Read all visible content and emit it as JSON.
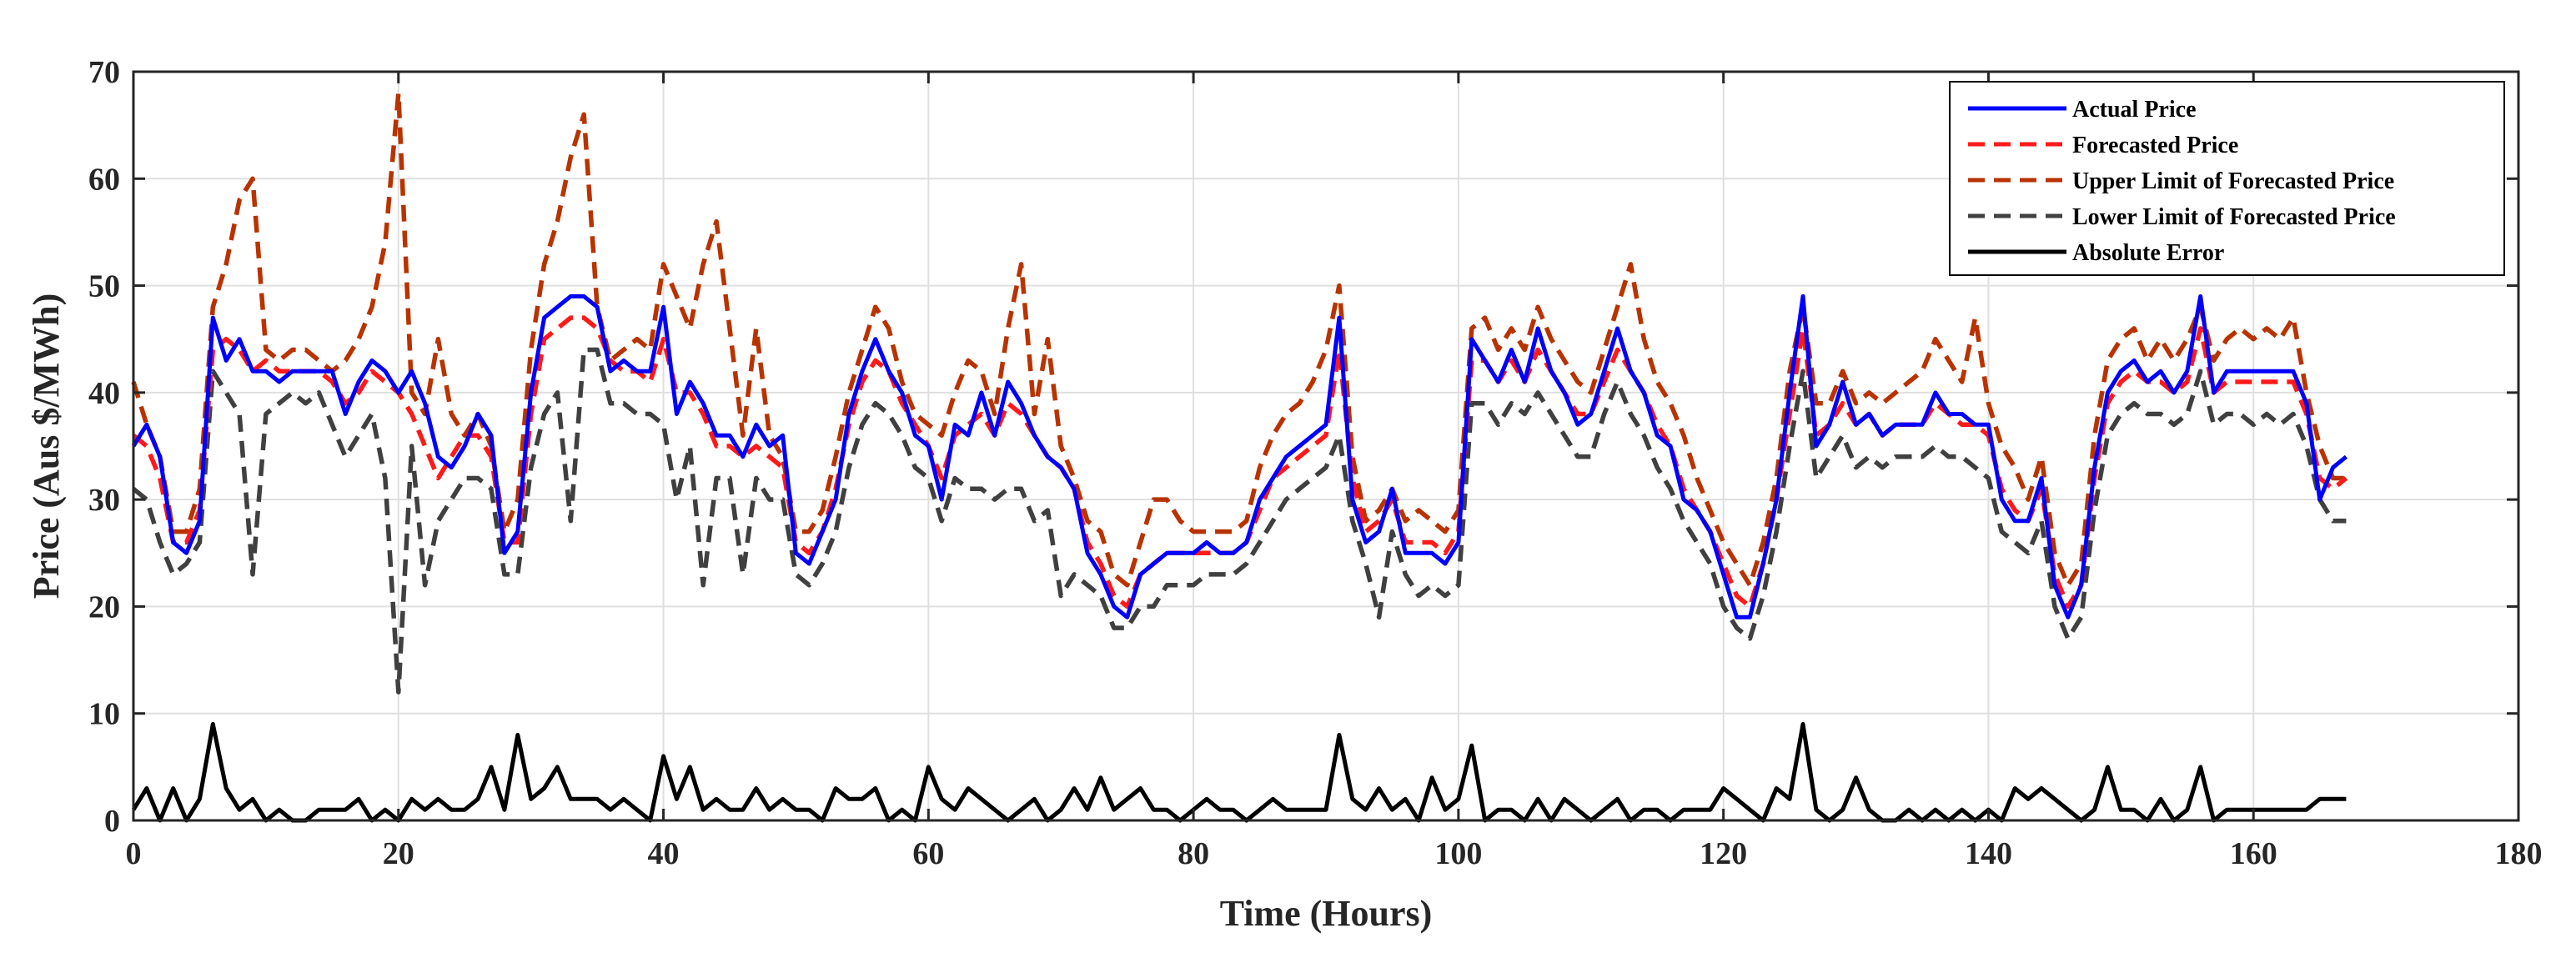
{
  "chart_data": {
    "type": "line",
    "title": "",
    "xlabel": "Time (Hours)",
    "ylabel": "Price (Aus $/MWh)",
    "xlim": [
      0,
      180
    ],
    "ylim": [
      0,
      70
    ],
    "xticks": [
      0,
      20,
      40,
      60,
      80,
      100,
      120,
      140,
      160,
      180
    ],
    "yticks": [
      0,
      10,
      20,
      30,
      40,
      50,
      60,
      70
    ],
    "grid": true,
    "legend_position": "top-right",
    "x": [
      0,
      1,
      2,
      3,
      4,
      5,
      6,
      7,
      8,
      9,
      10,
      11,
      12,
      13,
      14,
      15,
      16,
      17,
      18,
      19,
      20,
      21,
      22,
      23,
      24,
      25,
      26,
      27,
      28,
      29,
      30,
      31,
      32,
      33,
      34,
      35,
      36,
      37,
      38,
      39,
      40,
      41,
      42,
      43,
      44,
      45,
      46,
      47,
      48,
      49,
      50,
      51,
      52,
      53,
      54,
      55,
      56,
      57,
      58,
      59,
      60,
      61,
      62,
      63,
      64,
      65,
      66,
      67,
      68,
      69,
      70,
      71,
      72,
      73,
      74,
      75,
      76,
      77,
      78,
      79,
      80,
      81,
      82,
      83,
      84,
      85,
      86,
      87,
      88,
      89,
      90,
      91,
      92,
      93,
      94,
      95,
      96,
      97,
      98,
      99,
      100,
      101,
      102,
      103,
      104,
      105,
      106,
      107,
      108,
      109,
      110,
      111,
      112,
      113,
      114,
      115,
      116,
      117,
      118,
      119,
      120,
      121,
      122,
      123,
      124,
      125,
      126,
      127,
      128,
      129,
      130,
      131,
      132,
      133,
      134,
      135,
      136,
      137,
      138,
      139,
      140,
      141,
      142,
      143,
      144,
      145,
      146,
      147,
      148,
      149,
      150,
      151,
      152,
      153,
      154,
      155,
      156,
      157,
      158,
      159,
      160,
      161,
      162,
      163,
      164,
      165,
      166,
      167
    ],
    "series": [
      {
        "name": "Actual Price",
        "color": "#0000ff",
        "style": "solid",
        "values": [
          35,
          37,
          34,
          26,
          25,
          28,
          47,
          43,
          45,
          42,
          42,
          41,
          42,
          42,
          42,
          42,
          38,
          41,
          43,
          42,
          40,
          42,
          39,
          34,
          33,
          35,
          38,
          36,
          25,
          27,
          40,
          47,
          48,
          49,
          49,
          48,
          42,
          43,
          42,
          42,
          48,
          38,
          41,
          39,
          36,
          36,
          34,
          37,
          35,
          36,
          25,
          24,
          27,
          30,
          38,
          42,
          45,
          42,
          40,
          36,
          35,
          30,
          37,
          36,
          40,
          36,
          41,
          39,
          36,
          34,
          33,
          31,
          25,
          23,
          20,
          19,
          23,
          24,
          25,
          25,
          25,
          26,
          25,
          25,
          26,
          30,
          32,
          34,
          35,
          36,
          37,
          47,
          30,
          26,
          27,
          31,
          25,
          25,
          25,
          24,
          26,
          45,
          43,
          41,
          44,
          41,
          46,
          42,
          40,
          37,
          38,
          42,
          46,
          42,
          40,
          36,
          35,
          30,
          29,
          27,
          23,
          19,
          19,
          24,
          30,
          40,
          49,
          35,
          37,
          41,
          37,
          38,
          36,
          37,
          37,
          37,
          40,
          38,
          38,
          37,
          37,
          30,
          28,
          28,
          32,
          22,
          19,
          22,
          33,
          40,
          42,
          43,
          41,
          42,
          40,
          42,
          49,
          40,
          42,
          42,
          42,
          42,
          42,
          42,
          39,
          30,
          33,
          34
        ]
      },
      {
        "name": "Forecasted Price",
        "color": "#ff1a1a",
        "style": "dashed",
        "values": [
          36,
          35,
          32,
          26,
          26,
          29,
          44,
          45,
          44,
          42,
          43,
          42,
          42,
          42,
          42,
          41,
          39,
          40,
          42,
          41,
          40,
          38,
          35,
          32,
          34,
          36,
          36,
          34,
          26,
          26,
          38,
          45,
          46,
          47,
          47,
          46,
          43,
          42,
          42,
          41,
          45,
          40,
          40,
          38,
          35,
          35,
          34,
          35,
          34,
          33,
          26,
          25,
          27,
          31,
          37,
          41,
          43,
          42,
          39,
          37,
          35,
          32,
          36,
          37,
          38,
          36,
          39,
          38,
          36,
          34,
          33,
          31,
          26,
          24,
          21,
          20,
          23,
          24,
          25,
          25,
          25,
          25,
          25,
          25,
          26,
          29,
          32,
          33,
          34,
          35,
          36,
          44,
          32,
          27,
          28,
          30,
          26,
          26,
          26,
          25,
          27,
          43,
          43,
          41,
          43,
          41,
          44,
          42,
          40,
          38,
          38,
          41,
          44,
          42,
          40,
          37,
          35,
          31,
          29,
          27,
          24,
          21,
          20,
          24,
          30,
          38,
          46,
          36,
          37,
          39,
          37,
          38,
          36,
          37,
          37,
          37,
          39,
          38,
          37,
          37,
          36,
          31,
          29,
          28,
          31,
          23,
          20,
          22,
          32,
          39,
          41,
          42,
          41,
          41,
          40,
          41,
          46,
          40,
          41,
          41,
          41,
          41,
          41,
          41,
          38,
          32,
          31,
          32
        ]
      },
      {
        "name": "Upper Limit of Forecasted Price",
        "color": "#b83300",
        "style": "dashed",
        "values": [
          41,
          37,
          34,
          27,
          27,
          31,
          48,
          52,
          58,
          60,
          44,
          43,
          44,
          44,
          43,
          42,
          43,
          45,
          48,
          54,
          68,
          40,
          38,
          45,
          38,
          36,
          38,
          35,
          27,
          30,
          44,
          52,
          56,
          62,
          66,
          48,
          43,
          44,
          45,
          44,
          52,
          49,
          46,
          52,
          56,
          46,
          36,
          46,
          36,
          34,
          27,
          27,
          29,
          34,
          40,
          44,
          48,
          46,
          41,
          38,
          37,
          36,
          40,
          43,
          42,
          38,
          46,
          52,
          38,
          45,
          35,
          32,
          28,
          27,
          23,
          22,
          26,
          30,
          30,
          28,
          27,
          27,
          27,
          27,
          28,
          33,
          36,
          38,
          39,
          41,
          44,
          50,
          34,
          28,
          29,
          31,
          28,
          29,
          28,
          27,
          29,
          46,
          47,
          44,
          46,
          44,
          48,
          45,
          43,
          41,
          40,
          44,
          48,
          52,
          45,
          41,
          39,
          36,
          32,
          29,
          26,
          24,
          22,
          26,
          32,
          42,
          48,
          39,
          39,
          42,
          39,
          40,
          39,
          40,
          41,
          42,
          45,
          43,
          41,
          47,
          39,
          35,
          33,
          30,
          34,
          25,
          22,
          24,
          36,
          43,
          45,
          46,
          43,
          45,
          43,
          45,
          48,
          43,
          45,
          46,
          45,
          46,
          45,
          47,
          40,
          35,
          32,
          32
        ]
      },
      {
        "name": "Lower Limit of Forecasted Price",
        "color": "#404040",
        "style": "dashed",
        "values": [
          31,
          30,
          26,
          23,
          24,
          26,
          42,
          40,
          38,
          23,
          38,
          39,
          40,
          39,
          40,
          37,
          34,
          36,
          38,
          32,
          12,
          35,
          22,
          28,
          30,
          32,
          32,
          31,
          23,
          23,
          33,
          38,
          40,
          28,
          44,
          44,
          39,
          39,
          38,
          38,
          37,
          30,
          35,
          22,
          32,
          32,
          23,
          32,
          30,
          30,
          23,
          22,
          24,
          27,
          33,
          37,
          39,
          38,
          36,
          33,
          32,
          28,
          32,
          31,
          31,
          30,
          31,
          31,
          28,
          29,
          21,
          23,
          22,
          21,
          18,
          18,
          20,
          20,
          22,
          22,
          22,
          23,
          23,
          23,
          24,
          26,
          28,
          30,
          31,
          32,
          33,
          36,
          28,
          24,
          19,
          27,
          23,
          21,
          22,
          21,
          22,
          39,
          39,
          37,
          39,
          38,
          40,
          38,
          36,
          34,
          34,
          38,
          41,
          38,
          36,
          33,
          31,
          28,
          26,
          24,
          20,
          18,
          17,
          21,
          27,
          35,
          42,
          32,
          34,
          36,
          33,
          34,
          33,
          34,
          34,
          34,
          35,
          34,
          34,
          33,
          32,
          27,
          26,
          25,
          28,
          20,
          17,
          19,
          29,
          36,
          38,
          39,
          38,
          38,
          37,
          38,
          42,
          37,
          38,
          38,
          37,
          38,
          37,
          38,
          35,
          30,
          28,
          28
        ]
      },
      {
        "name": "Absolute Error",
        "color": "#000000",
        "style": "solid",
        "values": [
          1,
          3,
          0,
          3,
          0,
          2,
          9,
          3,
          1,
          2,
          0,
          1,
          0,
          0,
          1,
          1,
          1,
          2,
          0,
          1,
          0,
          2,
          1,
          2,
          1,
          1,
          2,
          5,
          1,
          8,
          2,
          3,
          5,
          2,
          2,
          2,
          1,
          2,
          1,
          0,
          6,
          2,
          5,
          1,
          2,
          1,
          1,
          3,
          1,
          2,
          1,
          1,
          0,
          3,
          2,
          2,
          3,
          0,
          1,
          0,
          5,
          2,
          1,
          3,
          2,
          1,
          0,
          1,
          2,
          0,
          1,
          3,
          1,
          4,
          1,
          2,
          3,
          1,
          1,
          0,
          1,
          2,
          1,
          1,
          0,
          1,
          2,
          1,
          1,
          1,
          1,
          8,
          2,
          1,
          3,
          1,
          2,
          0,
          4,
          1,
          2,
          7,
          0,
          1,
          1,
          0,
          2,
          0,
          2,
          1,
          0,
          1,
          2,
          0,
          1,
          1,
          0,
          1,
          1,
          1,
          3,
          2,
          1,
          0,
          3,
          2,
          9,
          1,
          0,
          1,
          4,
          1,
          0,
          0,
          1,
          0,
          1,
          0,
          1,
          0,
          1,
          0,
          3,
          2,
          3,
          2,
          1,
          0,
          1,
          5,
          1,
          1,
          0,
          2,
          0,
          1,
          5,
          0,
          1,
          1,
          1,
          1,
          1,
          1,
          1,
          2,
          2,
          2
        ]
      }
    ]
  }
}
